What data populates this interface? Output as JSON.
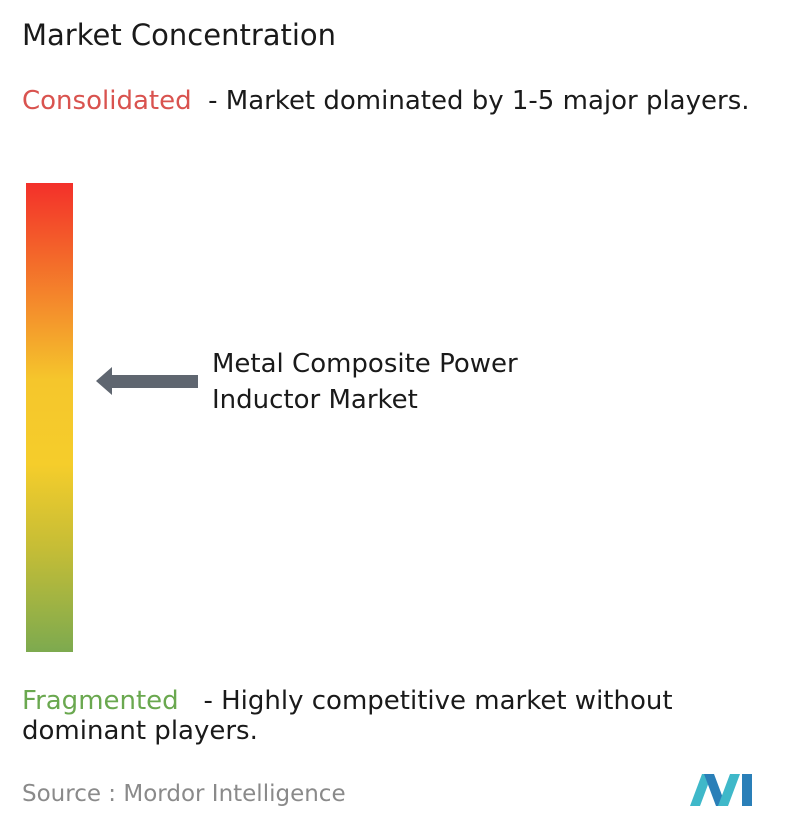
{
  "title": "Market Concentration",
  "consolidated": {
    "label": "Consolidated",
    "description": "- Market dominated by 1-5 major players."
  },
  "market": {
    "label": "Metal Composite Power Inductor Market"
  },
  "fragmented": {
    "label": "Fragmented",
    "description": "- Highly competitive market without dominant players."
  },
  "source": {
    "prefix": "Source :",
    "name": "Mordor Intelligence"
  }
}
